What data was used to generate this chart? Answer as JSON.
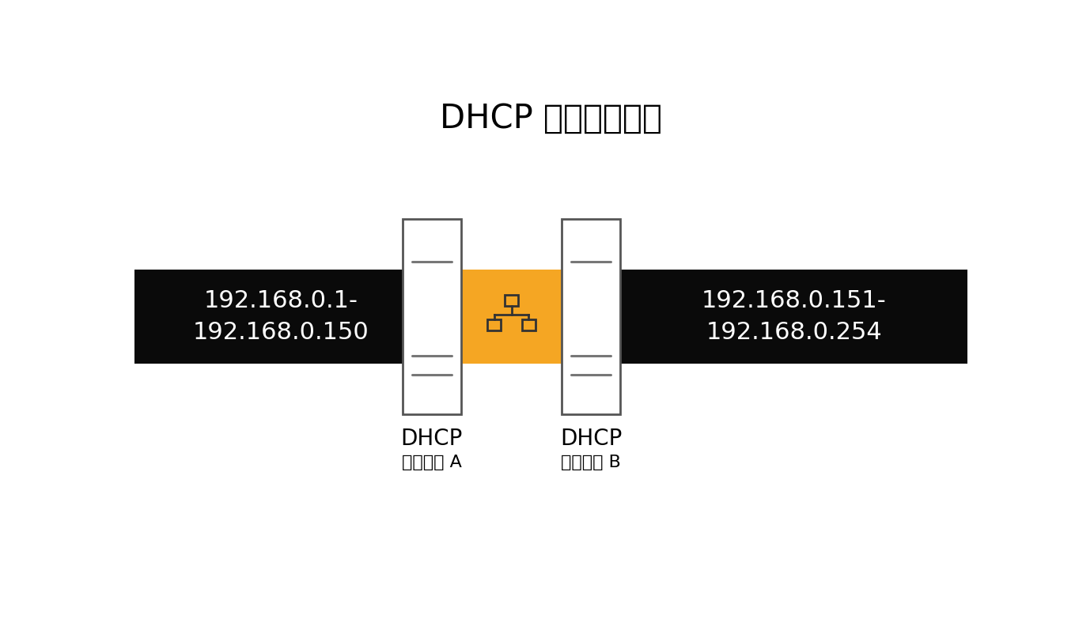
{
  "title": "DHCP 分割スコープ",
  "title_fontsize": 30,
  "background_color": "#ffffff",
  "black_color": "#0a0a0a",
  "orange_color": "#F5A623",
  "server_line_color": "#777777",
  "network_icon_color": "#333333",
  "left_label_line1": "192.168.0.1-",
  "left_label_line2": "192.168.0.150",
  "right_label_line1": "192.168.0.151-",
  "right_label_line2": "192.168.0.254",
  "server_a_label1": "DHCP",
  "server_a_label2": "サーバー A",
  "server_b_label1": "DHCP",
  "server_b_label2": "サーバー B",
  "label_fontsize": 20,
  "sublabel_fontsize": 16,
  "ip_fontsize": 22
}
